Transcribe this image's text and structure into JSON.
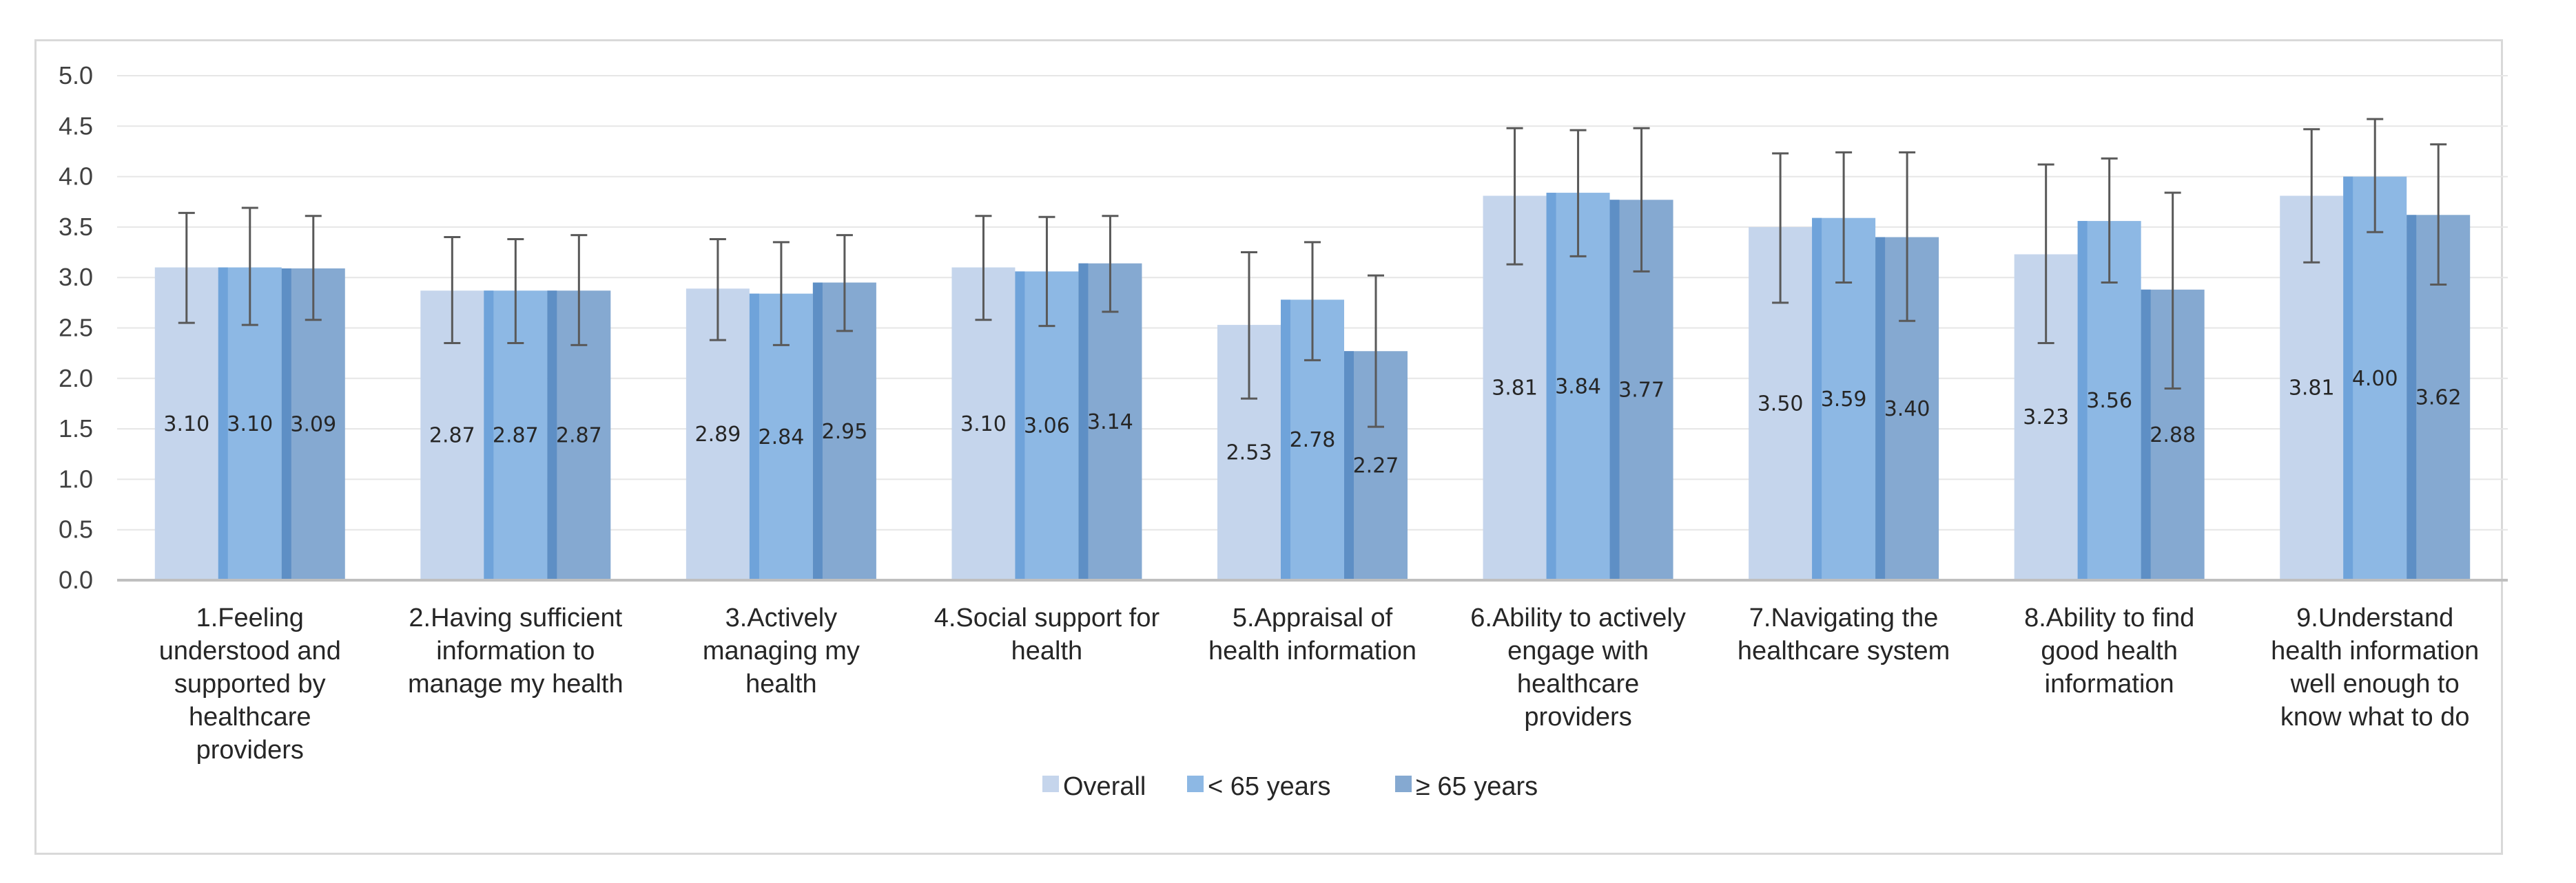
{
  "chart_data": {
    "type": "bar",
    "title": "",
    "xlabel": "",
    "ylabel": "",
    "ylim": [
      0,
      5
    ],
    "yticks": [
      "0.0",
      "0.5",
      "1.0",
      "1.5",
      "2.0",
      "2.5",
      "3.0",
      "3.5",
      "4.0",
      "4.5",
      "5.0"
    ],
    "grid": true,
    "legend_position": "bottom",
    "categories": [
      [
        "1.Feeling",
        "understood and",
        "supported by",
        "healthcare",
        "providers"
      ],
      [
        "2.Having sufficient",
        "information to",
        "manage my health"
      ],
      [
        "3.Actively",
        "managing my",
        "health"
      ],
      [
        "4.Social support for",
        "health"
      ],
      [
        "5.Appraisal of",
        "health information"
      ],
      [
        "6.Ability to actively",
        "engage with",
        "healthcare",
        "providers"
      ],
      [
        "7.Navigating the",
        "healthcare system"
      ],
      [
        "8.Ability to find",
        "good health",
        "information"
      ],
      [
        "9.Understand",
        "health information",
        "well enough to",
        "know what to do"
      ]
    ],
    "series": [
      {
        "name": "Overall",
        "color": "#c5d5ec",
        "values": [
          3.1,
          2.87,
          2.89,
          3.1,
          2.53,
          3.81,
          3.5,
          3.23,
          3.81
        ],
        "labels": [
          "3.10",
          "2.87",
          "2.89",
          "3.10",
          "2.53",
          "3.81",
          "3.50",
          "3.23",
          "3.81"
        ],
        "error_low": [
          2.55,
          2.35,
          2.38,
          2.58,
          1.8,
          3.13,
          2.75,
          2.35,
          3.15
        ],
        "error_high": [
          3.64,
          3.4,
          3.38,
          3.61,
          3.25,
          4.48,
          4.23,
          4.12,
          4.47
        ]
      },
      {
        "name": "< 65 years",
        "color": "#8db8e4",
        "values": [
          3.1,
          2.87,
          2.84,
          3.06,
          2.78,
          3.84,
          3.59,
          3.56,
          4.0
        ],
        "labels": [
          "3.10",
          "2.87",
          "2.84",
          "3.06",
          "2.78",
          "3.84",
          "3.59",
          "3.56",
          "4.00"
        ],
        "error_low": [
          2.53,
          2.35,
          2.33,
          2.52,
          2.18,
          3.21,
          2.95,
          2.95,
          3.45
        ],
        "error_high": [
          3.69,
          3.38,
          3.35,
          3.6,
          3.35,
          4.46,
          4.24,
          4.18,
          4.57
        ]
      },
      {
        "name": "≥ 65 years",
        "color": "#85a9d1",
        "values": [
          3.09,
          2.87,
          2.95,
          3.14,
          2.27,
          3.77,
          3.4,
          2.88,
          3.62
        ],
        "labels": [
          "3.09",
          "2.87",
          "2.95",
          "3.14",
          "2.27",
          "3.77",
          "3.40",
          "2.88",
          "3.62"
        ],
        "error_low": [
          2.58,
          2.33,
          2.47,
          2.66,
          1.52,
          3.06,
          2.57,
          1.9,
          2.93
        ],
        "error_high": [
          3.61,
          3.42,
          3.42,
          3.61,
          3.02,
          4.48,
          4.24,
          3.84,
          4.32
        ]
      }
    ]
  }
}
